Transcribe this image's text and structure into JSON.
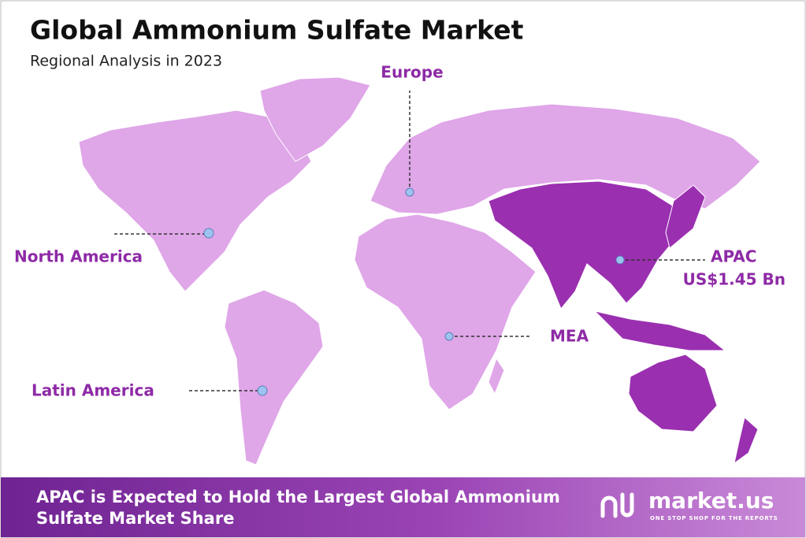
{
  "header": {
    "title": "Global Ammonium Sulfate Market",
    "subtitle": "Regional Analysis in 2023"
  },
  "regions": [
    {
      "label": "Europe"
    },
    {
      "label": "North America"
    },
    {
      "label": "APAC",
      "value": "US$1.45 Bn"
    },
    {
      "label": "MEA"
    },
    {
      "label": "Latin America"
    }
  ],
  "footer": {
    "lines": [
      "APAC is Expected to Hold the Largest Global Ammonium",
      "Sulfate Market Share"
    ],
    "brand": "market.us",
    "tagline": "ONE STOP SHOP FOR THE REPORTS"
  }
}
